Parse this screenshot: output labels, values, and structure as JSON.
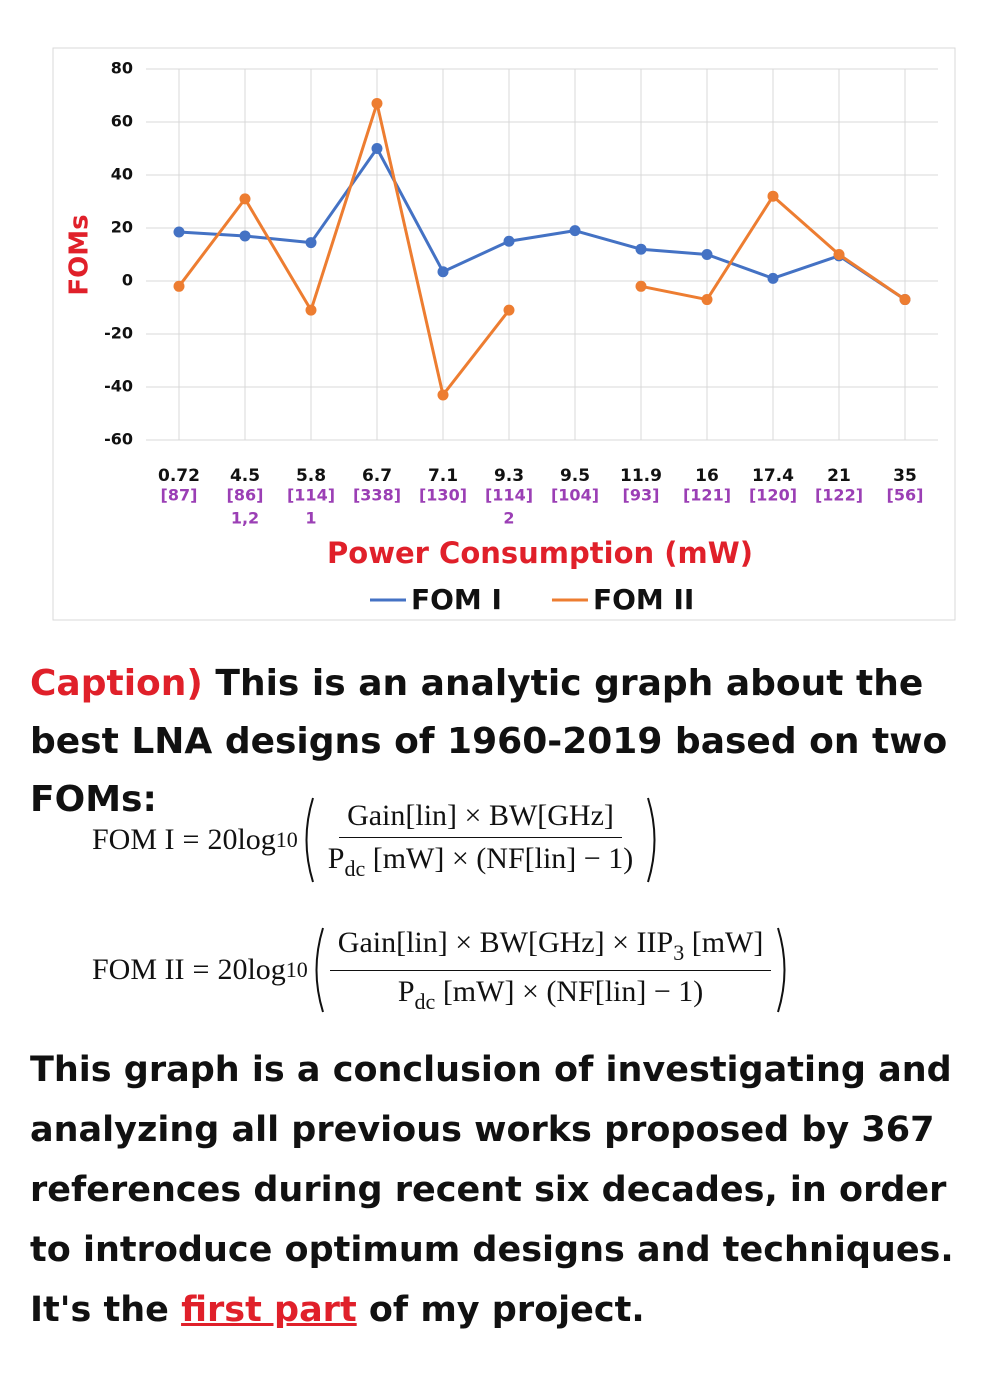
{
  "chart_data": {
    "type": "line",
    "categories": [
      "0.72",
      "4.5",
      "5.8",
      "6.7",
      "7.1",
      "9.3",
      "9.5",
      "11.9",
      "16",
      "17.4",
      "21",
      "35"
    ],
    "category_refs": [
      "[87]",
      "[86]",
      "[114]",
      "[338]",
      "[130]",
      "[114]",
      "[104]",
      "[93]",
      "[121]",
      "[120]",
      "[122]",
      "[56]"
    ],
    "category_notes": [
      null,
      "1,2",
      "1",
      null,
      null,
      "2",
      null,
      null,
      null,
      null,
      null,
      null
    ],
    "xlabel": "Power Consumption (mW)",
    "ylabel": "FOMs",
    "ylim": [
      -60,
      80
    ],
    "yticks": [
      -60,
      -40,
      -20,
      0,
      20,
      40,
      60,
      80
    ],
    "grid": true,
    "legend_position": "bottom",
    "series": [
      {
        "name": "FOM I",
        "color": "#4472c4",
        "values": [
          18.5,
          17,
          14.5,
          50,
          3.5,
          15,
          19,
          12,
          10,
          1,
          9.5,
          -7
        ]
      },
      {
        "name": "FOM II",
        "color": "#ed7d31",
        "values": [
          -2,
          31,
          -11,
          67,
          -43,
          -11,
          null,
          -2,
          -7,
          32,
          10,
          -7
        ]
      }
    ]
  },
  "caption": {
    "label": "Caption)",
    "text": "This is an analytic graph about the best LNA designs of 1960-2019 based on two FOMs:"
  },
  "formulas": [
    {
      "lhs": "FOM I",
      "equals": "=",
      "coefficient": "20log",
      "base": "10",
      "numerator": "Gain[lin] × BW[GHz]",
      "denominator": "P",
      "denominator_sub": "dc",
      "denominator_rest": "[mW] × (NF[lin] − 1)"
    },
    {
      "lhs": "FOM II",
      "equals": "=",
      "coefficient": "20log",
      "base": "10",
      "numerator": "Gain[lin] × BW[GHz] × IIP",
      "numerator_sub": "3",
      "numerator_rest": "[mW]",
      "denominator": "P",
      "denominator_sub": "dc",
      "denominator_rest": "[mW] × (NF[lin] − 1)"
    }
  ],
  "body": {
    "text_before": "This graph is a conclusion of investigating and analyzing all previous works proposed by 367 references during recent six decades, in order to introduce optimum designs and techniques. It's the ",
    "link": "first part",
    "text_after": " of my project."
  }
}
